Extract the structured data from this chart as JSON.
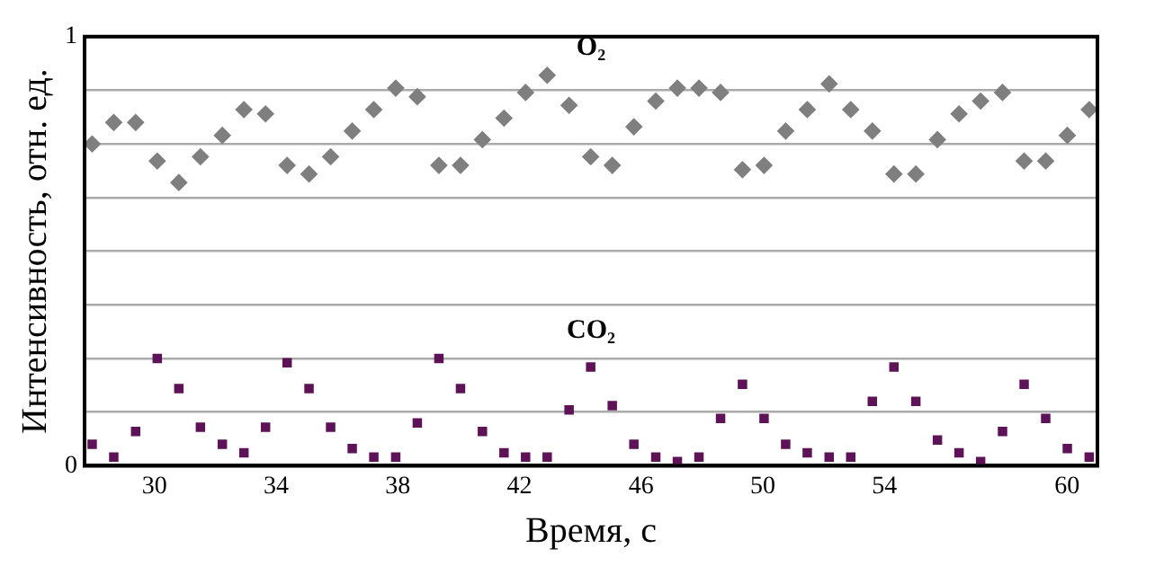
{
  "chart_data": {
    "type": "scatter",
    "xlabel": "Время, с",
    "ylabel": "Интенсивность, отн. ед.",
    "x": [
      27.95,
      28.66,
      29.38,
      30.09,
      30.8,
      31.51,
      32.23,
      32.94,
      33.65,
      34.36,
      35.08,
      35.79,
      36.5,
      37.21,
      37.93,
      38.64,
      39.35,
      40.06,
      40.78,
      41.49,
      42.2,
      42.91,
      43.63,
      44.34,
      45.05,
      45.76,
      46.48,
      47.19,
      47.9,
      48.61,
      49.33,
      50.04,
      50.75,
      51.46,
      52.18,
      52.89,
      53.6,
      54.31,
      55.03,
      55.74,
      56.45,
      57.16,
      57.88,
      58.59,
      59.3,
      60.01,
      60.73
    ],
    "series": [
      {
        "name": "O₂",
        "color": "#7f7f7f",
        "marker": "diamond",
        "values": [
          0.75,
          0.8,
          0.8,
          0.71,
          0.66,
          0.72,
          0.77,
          0.83,
          0.82,
          0.7,
          0.68,
          0.72,
          0.78,
          0.83,
          0.88,
          0.86,
          0.7,
          0.7,
          0.76,
          0.81,
          0.87,
          0.91,
          0.84,
          0.72,
          0.7,
          0.79,
          0.85,
          0.88,
          0.88,
          0.87,
          0.69,
          0.7,
          0.78,
          0.83,
          0.89,
          0.83,
          0.78,
          0.68,
          0.68,
          0.76,
          0.82,
          0.85,
          0.87,
          0.71,
          0.71,
          0.77,
          0.83
        ]
      },
      {
        "name": "CO₂",
        "color": "#5e1257",
        "marker": "square",
        "values": [
          0.05,
          0.02,
          0.08,
          0.25,
          0.18,
          0.09,
          0.05,
          0.03,
          0.09,
          0.24,
          0.18,
          0.09,
          0.04,
          0.02,
          0.02,
          0.1,
          0.25,
          0.18,
          0.08,
          0.03,
          0.02,
          0.02,
          0.13,
          0.23,
          0.14,
          0.05,
          0.02,
          0.01,
          0.02,
          0.11,
          0.19,
          0.11,
          0.05,
          0.03,
          0.02,
          0.02,
          0.15,
          0.23,
          0.15,
          0.06,
          0.03,
          0.01,
          0.08,
          0.19,
          0.11,
          0.04,
          0.02
        ]
      }
    ],
    "xlim": [
      27.7,
      61
    ],
    "xticks": [
      30,
      34,
      38,
      42,
      46,
      50,
      54,
      60
    ],
    "ylim": [
      0,
      1
    ],
    "yticks": [
      0,
      {
        "value": 0.125,
        "label": null
      },
      {
        "value": 0.25,
        "label": null
      },
      {
        "value": 0.375,
        "label": null
      },
      {
        "value": 0.5,
        "label": null
      },
      {
        "value": 0.625,
        "label": null
      },
      {
        "value": 0.75,
        "label": null
      },
      {
        "value": 0.875,
        "label": null
      },
      1
    ],
    "grid": "y"
  }
}
